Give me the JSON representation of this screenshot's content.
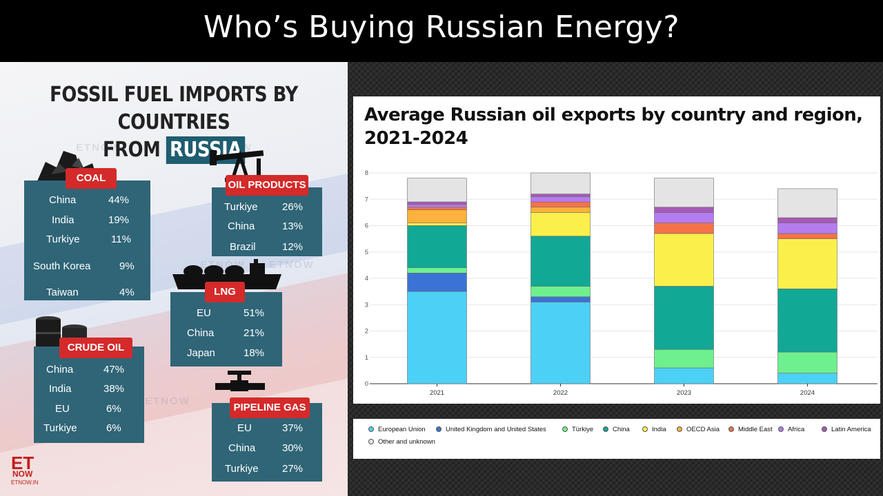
{
  "header": {
    "title": "Who’s Buying Russian Energy?"
  },
  "infographic": {
    "heading_line1": "FOSSIL FUEL IMPORTS BY COUNTRIES",
    "heading_line2_prefix": "FROM",
    "heading_line2_highlight": "RUSSIA",
    "watermark": "ETNOW",
    "logo": {
      "main": "ET",
      "sub": "NOW",
      "site": "ETNOW.IN"
    },
    "cards": [
      {
        "label": "COAL",
        "icon": "coal-icon",
        "rows": [
          {
            "country": "China",
            "value": "44%"
          },
          {
            "country": "India",
            "value": "19%"
          },
          {
            "country": "Turkiye",
            "value": "11%"
          },
          {
            "country": "South Korea",
            "value": "9%"
          },
          {
            "country": "Taiwan",
            "value": "4%"
          }
        ]
      },
      {
        "label": "OIL PRODUCTS",
        "icon": "oil-pump-icon",
        "rows": [
          {
            "country": "Turkiye",
            "value": "26%"
          },
          {
            "country": "China",
            "value": "13%"
          },
          {
            "country": "Brazil",
            "value": "12%"
          }
        ]
      },
      {
        "label": "LNG",
        "icon": "lng-ship-icon",
        "rows": [
          {
            "country": "EU",
            "value": "51%"
          },
          {
            "country": "China",
            "value": "21%"
          },
          {
            "country": "Japan",
            "value": "18%"
          }
        ]
      },
      {
        "label": "CRUDE OIL",
        "icon": "oil-barrel-icon",
        "rows": [
          {
            "country": "China",
            "value": "47%"
          },
          {
            "country": "India",
            "value": "38%"
          },
          {
            "country": "EU",
            "value": "6%"
          },
          {
            "country": "Turkiye",
            "value": "6%"
          }
        ]
      },
      {
        "label": "PIPELINE GAS",
        "icon": "pipeline-valve-icon",
        "rows": [
          {
            "country": "EU",
            "value": "37%"
          },
          {
            "country": "China",
            "value": "30%"
          },
          {
            "country": "Turkiye",
            "value": "27%"
          }
        ]
      }
    ]
  },
  "chart_data": {
    "type": "bar",
    "stacked": true,
    "title": "Average Russian oil exports by country and region, 2021-2024",
    "xlabel": "",
    "ylabel": "",
    "ylim": [
      0,
      8
    ],
    "yticks": [
      0,
      1,
      2,
      3,
      4,
      5,
      6,
      7,
      8
    ],
    "grid": true,
    "legend_position": "bottom",
    "categories": [
      "2021",
      "2022",
      "2023",
      "2024"
    ],
    "series": [
      {
        "name": "European Union",
        "color": "#4dd0f5",
        "values": [
          3.5,
          3.1,
          0.6,
          0.4
        ]
      },
      {
        "name": "United Kingdom and United States",
        "color": "#3b73d4",
        "values": [
          0.7,
          0.2,
          0.0,
          0.0
        ]
      },
      {
        "name": "Türkiye",
        "color": "#6ff08f",
        "values": [
          0.2,
          0.4,
          0.7,
          0.8
        ]
      },
      {
        "name": "China",
        "color": "#12a896",
        "values": [
          1.6,
          1.9,
          2.4,
          2.4
        ]
      },
      {
        "name": "India",
        "color": "#fbf04b",
        "values": [
          0.1,
          0.9,
          2.0,
          1.9
        ]
      },
      {
        "name": "OECD Asia",
        "color": "#fcb23c",
        "values": [
          0.5,
          0.2,
          0.0,
          0.0
        ]
      },
      {
        "name": "Middle East",
        "color": "#f4734a",
        "values": [
          0.1,
          0.2,
          0.4,
          0.2
        ]
      },
      {
        "name": "Africa",
        "color": "#b57cf0",
        "values": [
          0.1,
          0.2,
          0.4,
          0.4
        ]
      },
      {
        "name": "Latin America",
        "color": "#a65bb5",
        "values": [
          0.1,
          0.1,
          0.2,
          0.2
        ]
      },
      {
        "name": "Other and unknown",
        "color": "#e4e4e4",
        "values": [
          0.9,
          0.8,
          1.1,
          1.1
        ]
      }
    ]
  }
}
